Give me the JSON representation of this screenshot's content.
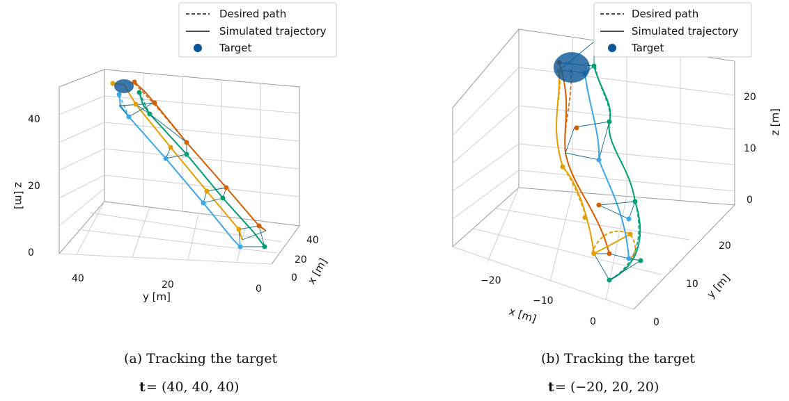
{
  "legend": {
    "desired": "Desired path",
    "simulated": "Simulated trajectory",
    "target": "Target"
  },
  "colors": {
    "drone1": "#d55e00",
    "drone2": "#e69f00",
    "drone3": "#009e73",
    "drone4": "#3aa8e6",
    "target": "#0a5596",
    "grid": "#cfcfcf"
  },
  "chart_data": [
    {
      "type": "line",
      "caption": "(a) Tracking the target",
      "caption_math": {
        "bold": "t",
        "rest": " = (40, 40, 40)"
      },
      "xlabel": "x [m]",
      "ylabel": "y [m]",
      "zlabel": "z [m]",
      "xticks": [
        "0",
        "20",
        "40"
      ],
      "yticks": [
        "40",
        "20",
        "0"
      ],
      "zticks": [
        "0",
        "20",
        "40"
      ],
      "target": [
        40,
        40,
        40
      ]
    },
    {
      "type": "line",
      "caption": "(b) Tracking the target",
      "caption_math": {
        "bold": "t",
        "rest": " = (−20, 20, 20)"
      },
      "xlabel": "x [m]",
      "ylabel": "y [m]",
      "zlabel": "z [m]",
      "xticks": [
        "−20",
        "−10",
        "0"
      ],
      "yticks": [
        "0",
        "10",
        "20"
      ],
      "zticks": [
        "0",
        "10",
        "20"
      ],
      "target": [
        -20,
        20,
        20
      ]
    }
  ]
}
